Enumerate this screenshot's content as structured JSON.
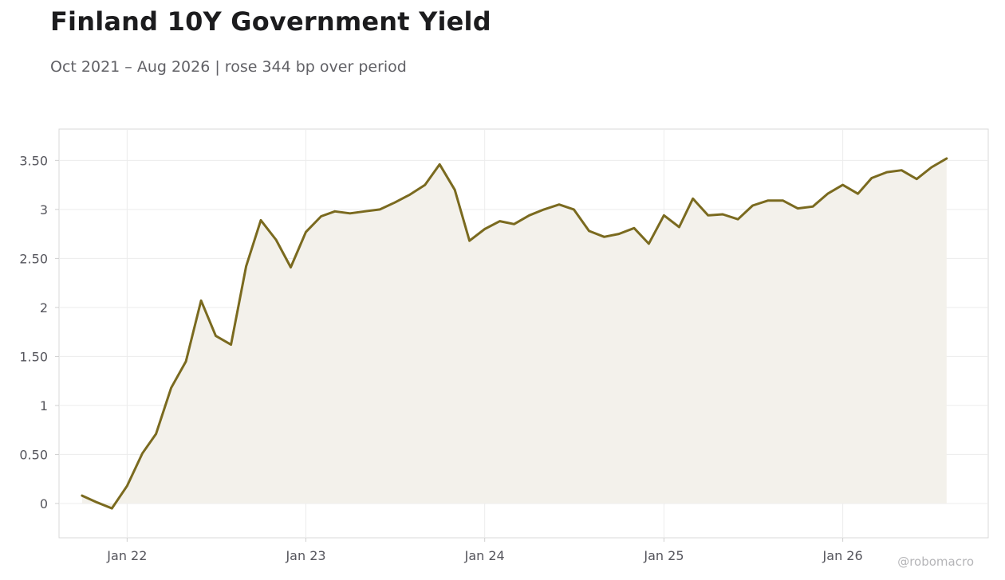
{
  "header": {
    "title": "Finland 10Y Government Yield",
    "subtitle": "Oct 2021 – Aug 2026 | rose 344 bp over period"
  },
  "watermark": "@robomacro",
  "colors": {
    "line": "#7a6a1f",
    "fill": "#f3f1eb",
    "grid": "#ececec",
    "frame": "#d9d9d9",
    "text": "#1c1c1e",
    "muted": "#616166"
  },
  "chart_data": {
    "type": "area",
    "title": "Finland 10Y Government Yield",
    "subtitle": "Oct 2021 – Aug 2026 | rose 344 bp over period",
    "xlabel": "",
    "ylabel": "",
    "ylim": [
      -0.35,
      3.82
    ],
    "xlim": [
      "2021-08-15",
      "2026-10-25"
    ],
    "grid": true,
    "legend": "none",
    "yticks": [
      0,
      0.5,
      1,
      1.5,
      2,
      2.5,
      3,
      3.5
    ],
    "ytick_labels": [
      "0",
      "0.50",
      "1",
      "1.50",
      "2",
      "2.50",
      "3",
      "3.50"
    ],
    "xticks": [
      "2022-01-01",
      "2023-01-01",
      "2024-01-01",
      "2025-01-01",
      "2026-01-01"
    ],
    "xtick_labels": [
      "Jan 22",
      "Jan 23",
      "Jan 24",
      "Jan 25",
      "Jan 26"
    ],
    "x": [
      "2021-10-01",
      "2021-11-01",
      "2021-12-01",
      "2022-01-01",
      "2022-02-01",
      "2022-03-01",
      "2022-04-01",
      "2022-05-01",
      "2022-06-01",
      "2022-07-01",
      "2022-08-01",
      "2022-09-01",
      "2022-10-01",
      "2022-11-01",
      "2022-12-01",
      "2023-01-01",
      "2023-02-01",
      "2023-03-01",
      "2023-04-01",
      "2023-05-01",
      "2023-06-01",
      "2023-07-01",
      "2023-08-01",
      "2023-09-01",
      "2023-10-01",
      "2023-11-01",
      "2023-12-01",
      "2024-01-01",
      "2024-02-01",
      "2024-03-01",
      "2024-04-01",
      "2024-05-01",
      "2024-06-01",
      "2024-07-01",
      "2024-08-01",
      "2024-09-01",
      "2024-10-01",
      "2024-11-01",
      "2024-12-01",
      "2025-01-01",
      "2025-02-01",
      "2025-03-01",
      "2025-04-01",
      "2025-05-01",
      "2025-06-01",
      "2025-07-01",
      "2025-08-01",
      "2025-09-01",
      "2025-10-01",
      "2025-11-01",
      "2025-12-01",
      "2026-01-01",
      "2026-02-01",
      "2026-03-01",
      "2026-04-01",
      "2026-05-01",
      "2026-06-01",
      "2026-07-01",
      "2026-08-01"
    ],
    "series": [
      {
        "values": [
          0.08,
          0.01,
          -0.05,
          0.18,
          0.51,
          0.71,
          1.18,
          1.45,
          2.07,
          1.71,
          1.62,
          2.42,
          2.89,
          2.69,
          2.41,
          2.77,
          2.93,
          2.98,
          2.96,
          2.98,
          3.0,
          3.07,
          3.15,
          3.25,
          3.46,
          3.2,
          2.68,
          2.8,
          2.88,
          2.85,
          2.94,
          3.0,
          3.05,
          3.0,
          2.78,
          2.72,
          2.75,
          2.81,
          2.65,
          2.94,
          2.82,
          3.11,
          2.94,
          2.95,
          2.9,
          3.04,
          3.09,
          3.09,
          3.01,
          3.03,
          3.16,
          3.25,
          3.16,
          3.32,
          3.38,
          3.4,
          3.31,
          3.43,
          3.52
        ]
      }
    ]
  }
}
